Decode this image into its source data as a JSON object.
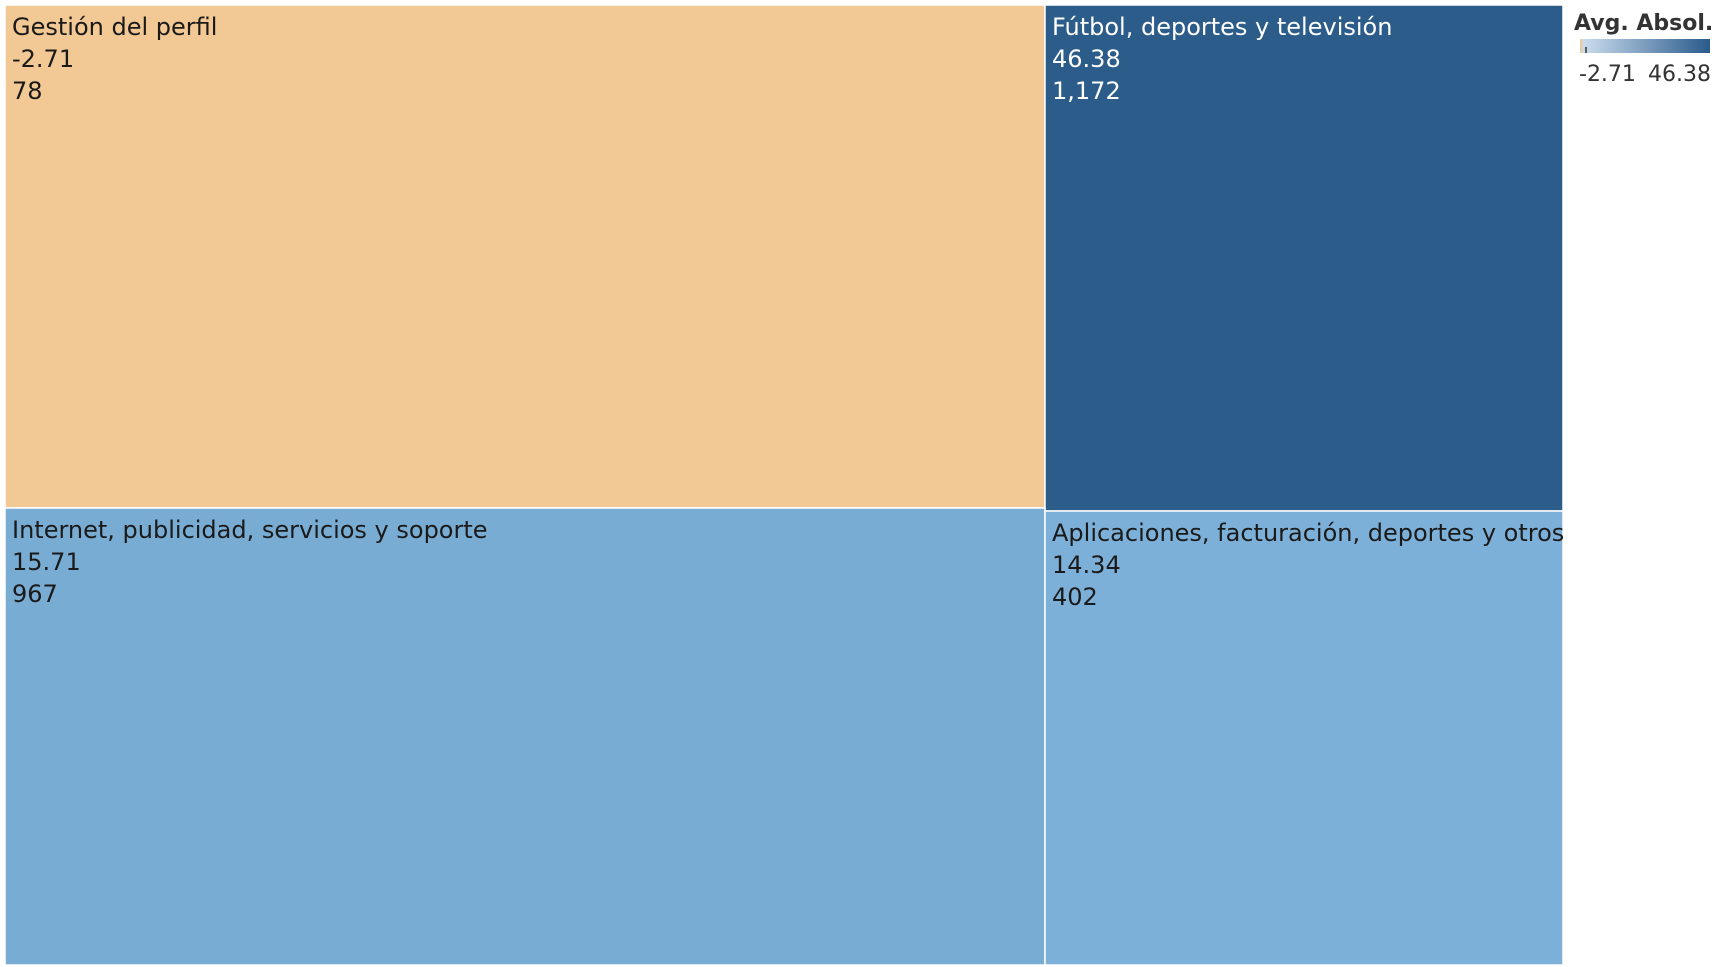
{
  "chart_data": {
    "type": "treemap",
    "legend": {
      "title": "Avg. Absol..",
      "min": -2.71,
      "max": 46.38,
      "min_label": "-2.71",
      "max_label": "46.38",
      "colors": [
        "#f2c894",
        "#c9dcec",
        "#2a5a8c"
      ]
    },
    "tiles": [
      {
        "name": "Gestión del perfil",
        "avg": -2.71,
        "avg_label": "-2.71",
        "count": 78,
        "count_label": "78",
        "color": "#f2c894",
        "text_color": "#1a1a1a"
      },
      {
        "name": "Fútbol, deportes y televisión",
        "avg": 46.38,
        "avg_label": "46.38",
        "count": 1172,
        "count_label": "1,172",
        "color": "#2b5c8a",
        "text_color": "#ffffff"
      },
      {
        "name": "Internet, publicidad, servicios y soporte",
        "avg": 15.71,
        "avg_label": "15.71",
        "count": 967,
        "count_label": "967",
        "color": "#79acd3",
        "text_color": "#1a1a1a"
      },
      {
        "name": "Aplicaciones, facturación, deportes y otros",
        "avg": 14.34,
        "avg_label": "14.34",
        "count": 402,
        "count_label": "402",
        "color": "#7db0d8",
        "text_color": "#1a1a1a"
      }
    ]
  }
}
